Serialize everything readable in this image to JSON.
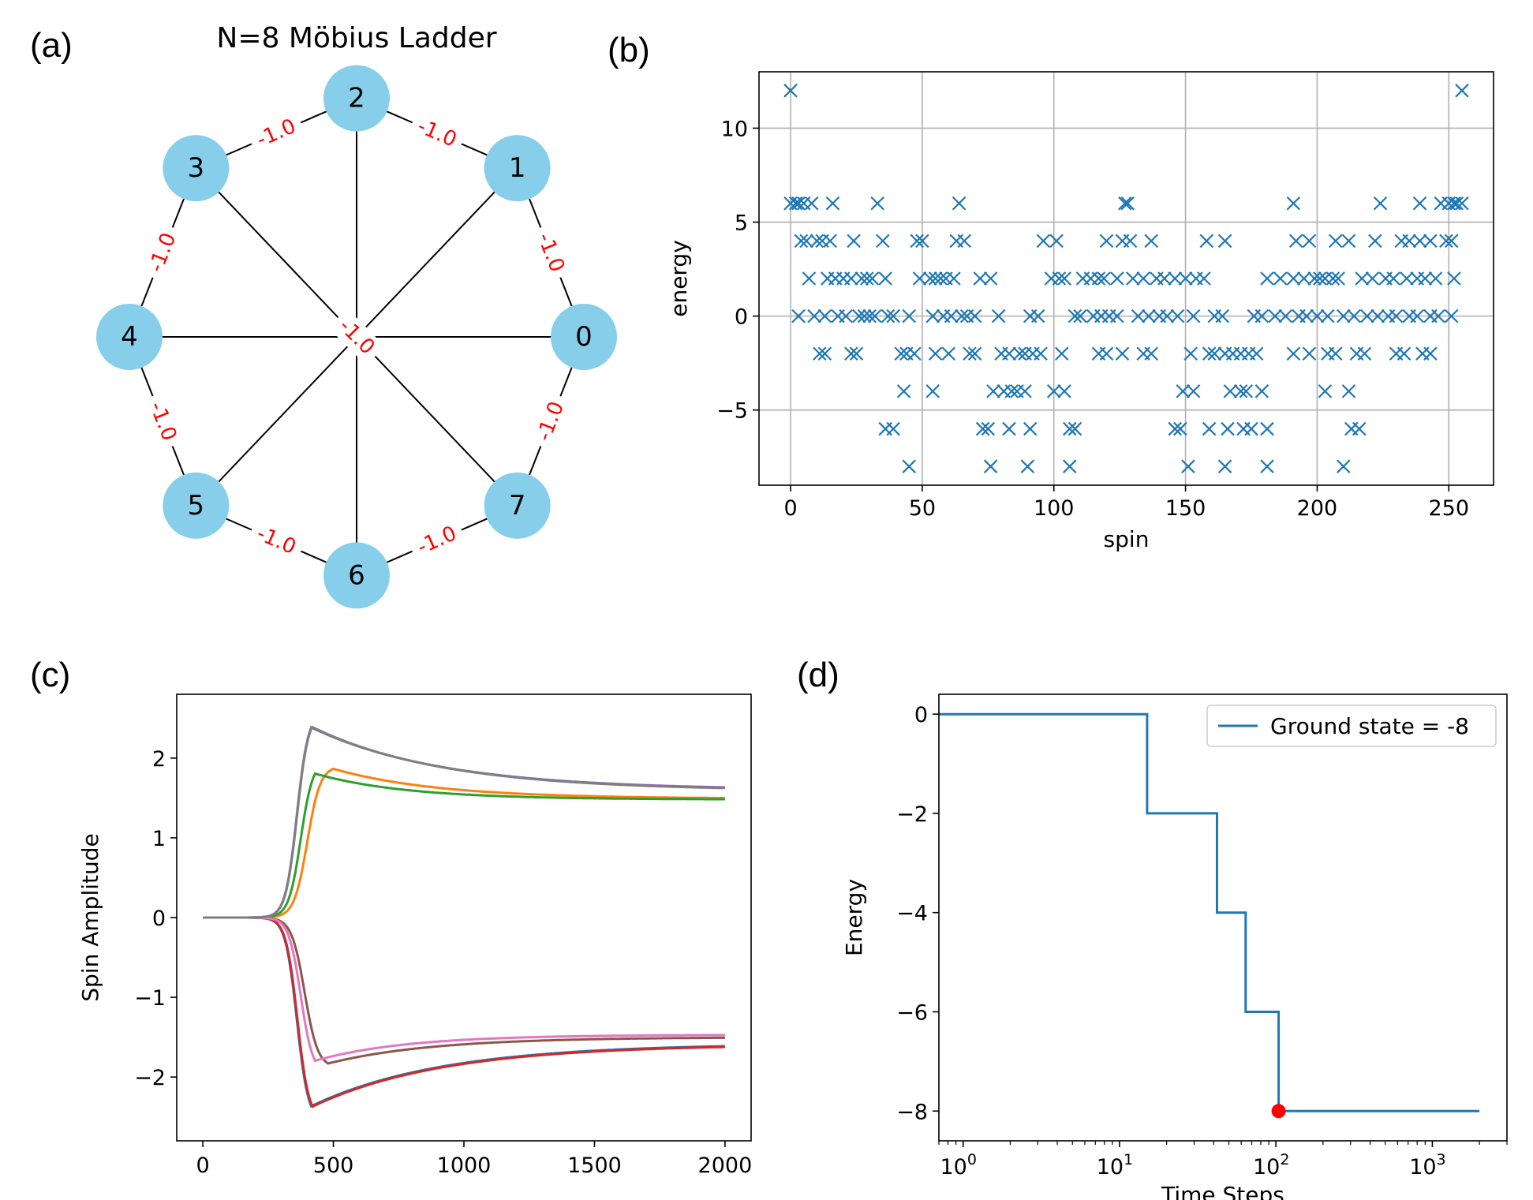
{
  "panels": {
    "a": {
      "label": "(a)",
      "title": "N=8 Möbius Ladder",
      "node_color": "#87ceeb",
      "nodes": [
        "0",
        "1",
        "2",
        "3",
        "4",
        "5",
        "6",
        "7"
      ],
      "edges": [
        [
          0,
          1
        ],
        [
          1,
          2
        ],
        [
          2,
          3
        ],
        [
          3,
          4
        ],
        [
          4,
          5
        ],
        [
          5,
          6
        ],
        [
          6,
          7
        ],
        [
          7,
          0
        ],
        [
          0,
          4
        ],
        [
          1,
          5
        ],
        [
          2,
          6
        ],
        [
          3,
          7
        ]
      ],
      "edge_weight_label": "-1.0",
      "edge_label_color": "#ff0000"
    },
    "b": {
      "label": "(b)"
    },
    "c": {
      "label": "(c)"
    },
    "d": {
      "label": "(d)"
    }
  },
  "chart_data": [
    {
      "panel": "b",
      "type": "scatter",
      "marker": "x",
      "color": "#1f77b4",
      "xlabel": "spin",
      "ylabel": "energy",
      "xlim": [
        -12,
        267
      ],
      "ylim": [
        -9,
        13
      ],
      "xticks": [
        0,
        50,
        100,
        150,
        200,
        250
      ],
      "yticks": [
        -5,
        0,
        5,
        10
      ],
      "grid": true,
      "energy_levels": [
        12,
        6,
        4,
        2,
        0,
        -2,
        -4,
        -6,
        -8
      ],
      "points": [
        [
          0,
          12
        ],
        [
          255,
          12
        ],
        [
          0,
          6
        ],
        [
          2,
          6
        ],
        [
          3,
          6
        ],
        [
          5,
          6
        ],
        [
          8,
          6
        ],
        [
          16,
          6
        ],
        [
          33,
          6
        ],
        [
          64,
          6
        ],
        [
          127,
          6
        ],
        [
          128,
          6
        ],
        [
          191,
          6
        ],
        [
          224,
          6
        ],
        [
          239,
          6
        ],
        [
          247,
          6
        ],
        [
          250,
          6
        ],
        [
          252,
          6
        ],
        [
          253,
          6
        ],
        [
          255,
          6
        ],
        [
          4,
          4
        ],
        [
          6,
          4
        ],
        [
          10,
          4
        ],
        [
          12,
          4
        ],
        [
          15,
          4
        ],
        [
          24,
          4
        ],
        [
          35,
          4
        ],
        [
          48,
          4
        ],
        [
          50,
          4
        ],
        [
          63,
          4
        ],
        [
          66,
          4
        ],
        [
          96,
          4
        ],
        [
          101,
          4
        ],
        [
          120,
          4
        ],
        [
          126,
          4
        ],
        [
          129,
          4
        ],
        [
          137,
          4
        ],
        [
          158,
          4
        ],
        [
          165,
          4
        ],
        [
          192,
          4
        ],
        [
          197,
          4
        ],
        [
          207,
          4
        ],
        [
          212,
          4
        ],
        [
          222,
          4
        ],
        [
          232,
          4
        ],
        [
          235,
          4
        ],
        [
          239,
          4
        ],
        [
          243,
          4
        ],
        [
          249,
          4
        ],
        [
          251,
          4
        ],
        [
          7,
          2
        ],
        [
          14,
          2
        ],
        [
          17,
          2
        ],
        [
          20,
          2
        ],
        [
          23,
          2
        ],
        [
          27,
          2
        ],
        [
          29,
          2
        ],
        [
          31,
          2
        ],
        [
          36,
          2
        ],
        [
          49,
          2
        ],
        [
          53,
          2
        ],
        [
          55,
          2
        ],
        [
          57,
          2
        ],
        [
          59,
          2
        ],
        [
          62,
          2
        ],
        [
          72,
          2
        ],
        [
          76,
          2
        ],
        [
          99,
          2
        ],
        [
          102,
          2
        ],
        [
          104,
          2
        ],
        [
          111,
          2
        ],
        [
          114,
          2
        ],
        [
          117,
          2
        ],
        [
          119,
          2
        ],
        [
          124,
          2
        ],
        [
          130,
          2
        ],
        [
          134,
          2
        ],
        [
          139,
          2
        ],
        [
          142,
          2
        ],
        [
          146,
          2
        ],
        [
          150,
          2
        ],
        [
          154,
          2
        ],
        [
          157,
          2
        ],
        [
          181,
          2
        ],
        [
          186,
          2
        ],
        [
          191,
          2
        ],
        [
          195,
          2
        ],
        [
          199,
          2
        ],
        [
          201,
          2
        ],
        [
          203,
          2
        ],
        [
          206,
          2
        ],
        [
          208,
          2
        ],
        [
          217,
          2
        ],
        [
          221,
          2
        ],
        [
          226,
          2
        ],
        [
          229,
          2
        ],
        [
          234,
          2
        ],
        [
          238,
          2
        ],
        [
          241,
          2
        ],
        [
          245,
          2
        ],
        [
          252,
          2
        ],
        [
          3,
          0
        ],
        [
          9,
          0
        ],
        [
          13,
          0
        ],
        [
          18,
          0
        ],
        [
          21,
          0
        ],
        [
          26,
          0
        ],
        [
          28,
          0
        ],
        [
          30,
          0
        ],
        [
          32,
          0
        ],
        [
          37,
          0
        ],
        [
          39,
          0
        ],
        [
          45,
          0
        ],
        [
          54,
          0
        ],
        [
          58,
          0
        ],
        [
          61,
          0
        ],
        [
          65,
          0
        ],
        [
          67,
          0
        ],
        [
          70,
          0
        ],
        [
          79,
          0
        ],
        [
          91,
          0
        ],
        [
          94,
          0
        ],
        [
          108,
          0
        ],
        [
          110,
          0
        ],
        [
          115,
          0
        ],
        [
          118,
          0
        ],
        [
          121,
          0
        ],
        [
          124,
          0
        ],
        [
          132,
          0
        ],
        [
          136,
          0
        ],
        [
          140,
          0
        ],
        [
          143,
          0
        ],
        [
          147,
          0
        ],
        [
          153,
          0
        ],
        [
          161,
          0
        ],
        [
          164,
          0
        ],
        [
          176,
          0
        ],
        [
          179,
          0
        ],
        [
          184,
          0
        ],
        [
          188,
          0
        ],
        [
          193,
          0
        ],
        [
          196,
          0
        ],
        [
          200,
          0
        ],
        [
          204,
          0
        ],
        [
          210,
          0
        ],
        [
          214,
          0
        ],
        [
          219,
          0
        ],
        [
          223,
          0
        ],
        [
          227,
          0
        ],
        [
          230,
          0
        ],
        [
          235,
          0
        ],
        [
          238,
          0
        ],
        [
          243,
          0
        ],
        [
          246,
          0
        ],
        [
          251,
          0
        ],
        [
          11,
          -2
        ],
        [
          13,
          -2
        ],
        [
          23,
          -2
        ],
        [
          25,
          -2
        ],
        [
          42,
          -2
        ],
        [
          44,
          -2
        ],
        [
          47,
          -2
        ],
        [
          55,
          -2
        ],
        [
          60,
          -2
        ],
        [
          68,
          -2
        ],
        [
          70,
          -2
        ],
        [
          80,
          -2
        ],
        [
          83,
          -2
        ],
        [
          87,
          -2
        ],
        [
          89,
          -2
        ],
        [
          92,
          -2
        ],
        [
          95,
          -2
        ],
        [
          103,
          -2
        ],
        [
          117,
          -2
        ],
        [
          120,
          -2
        ],
        [
          126,
          -2
        ],
        [
          134,
          -2
        ],
        [
          137,
          -2
        ],
        [
          152,
          -2
        ],
        [
          159,
          -2
        ],
        [
          161,
          -2
        ],
        [
          165,
          -2
        ],
        [
          168,
          -2
        ],
        [
          171,
          -2
        ],
        [
          174,
          -2
        ],
        [
          177,
          -2
        ],
        [
          191,
          -2
        ],
        [
          197,
          -2
        ],
        [
          204,
          -2
        ],
        [
          207,
          -2
        ],
        [
          215,
          -2
        ],
        [
          218,
          -2
        ],
        [
          230,
          -2
        ],
        [
          233,
          -2
        ],
        [
          240,
          -2
        ],
        [
          243,
          -2
        ],
        [
          43,
          -4
        ],
        [
          54,
          -4
        ],
        [
          77,
          -4
        ],
        [
          81,
          -4
        ],
        [
          84,
          -4
        ],
        [
          86,
          -4
        ],
        [
          89,
          -4
        ],
        [
          100,
          -4
        ],
        [
          104,
          -4
        ],
        [
          149,
          -4
        ],
        [
          153,
          -4
        ],
        [
          167,
          -4
        ],
        [
          171,
          -4
        ],
        [
          173,
          -4
        ],
        [
          179,
          -4
        ],
        [
          203,
          -4
        ],
        [
          212,
          -4
        ],
        [
          36,
          -6
        ],
        [
          39,
          -6
        ],
        [
          73,
          -6
        ],
        [
          75,
          -6
        ],
        [
          83,
          -6
        ],
        [
          91,
          -6
        ],
        [
          106,
          -6
        ],
        [
          108,
          -6
        ],
        [
          146,
          -6
        ],
        [
          148,
          -6
        ],
        [
          159,
          -6
        ],
        [
          166,
          -6
        ],
        [
          172,
          -6
        ],
        [
          175,
          -6
        ],
        [
          181,
          -6
        ],
        [
          213,
          -6
        ],
        [
          216,
          -6
        ],
        [
          45,
          -8
        ],
        [
          76,
          -8
        ],
        [
          90,
          -8
        ],
        [
          106,
          -8
        ],
        [
          151,
          -8
        ],
        [
          165,
          -8
        ],
        [
          181,
          -8
        ],
        [
          210,
          -8
        ]
      ]
    },
    {
      "panel": "c",
      "type": "line",
      "xlabel": "",
      "ylabel": "Spin Amplitude",
      "xlim": [
        -100,
        2100
      ],
      "ylim": [
        -2.8,
        2.8
      ],
      "xticks": [
        0,
        500,
        1000,
        1500,
        2000
      ],
      "yticks": [
        -2,
        -1,
        0,
        1,
        2
      ],
      "series": [
        {
          "color": "#1f77b4",
          "peak_x": 415,
          "peak": -2.56,
          "final": -1.58,
          "mid": 360,
          "width": 22,
          "decay": 500
        },
        {
          "color": "#ff7f0e",
          "peak_x": 500,
          "peak": 1.9,
          "final": 1.49,
          "mid": 400,
          "width": 25,
          "decay": 400
        },
        {
          "color": "#2ca02c",
          "peak_x": 430,
          "peak": 1.97,
          "final": 1.48,
          "mid": 375,
          "width": 23,
          "decay": 350
        },
        {
          "color": "#d62728",
          "peak_x": 420,
          "peak": -2.54,
          "final": -1.59,
          "mid": 362,
          "width": 22,
          "decay": 500
        },
        {
          "color": "#9467bd",
          "peak_x": 415,
          "peak": 2.58,
          "final": 1.6,
          "mid": 360,
          "width": 22,
          "decay": 500
        },
        {
          "color": "#8c564b",
          "peak_x": 480,
          "peak": -1.88,
          "final": -1.5,
          "mid": 390,
          "width": 25,
          "decay": 400
        },
        {
          "color": "#e377c2",
          "peak_x": 430,
          "peak": -1.96,
          "final": -1.47,
          "mid": 375,
          "width": 23,
          "decay": 350
        },
        {
          "color": "#7f7f7f",
          "peak_x": 418,
          "peak": 2.57,
          "final": 1.59,
          "mid": 361,
          "width": 22,
          "decay": 500
        }
      ]
    },
    {
      "panel": "d",
      "type": "line",
      "xscale": "log",
      "xlabel": "Time Steps",
      "ylabel": "Energy",
      "xlim": [
        0.7,
        3000
      ],
      "ylim": [
        -8.6,
        0.4
      ],
      "xticks": [
        "10^0",
        "10^1",
        "10^2",
        "10^3"
      ],
      "yticks": [
        0,
        -2,
        -4,
        -6,
        -8
      ],
      "color": "#1f77b4",
      "steps": [
        [
          0.7,
          0
        ],
        [
          15,
          0
        ],
        [
          15,
          -2
        ],
        [
          42,
          -2
        ],
        [
          42,
          -4
        ],
        [
          64,
          -4
        ],
        [
          64,
          -6
        ],
        [
          104,
          -6
        ],
        [
          104,
          -8
        ],
        [
          2000,
          -8
        ]
      ],
      "marker": {
        "x": 104,
        "y": -8,
        "color": "#ff0000"
      },
      "legend": "Ground state = -8",
      "legend_loc": "upper right"
    }
  ]
}
